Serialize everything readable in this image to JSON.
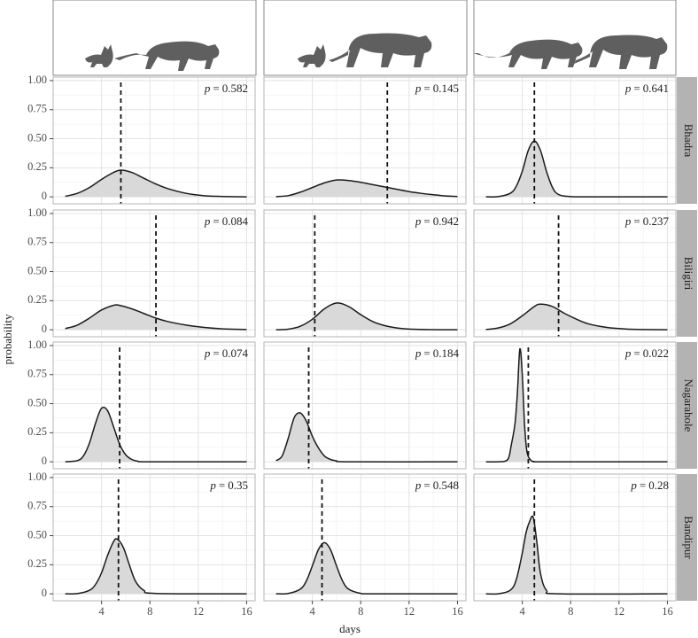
{
  "chart_data": {
    "type": "density-facets",
    "xlabel": "days",
    "ylabel": "probability",
    "xlim": [
      0,
      16.7
    ],
    "ylim": [
      -0.06,
      1.03
    ],
    "xticks": [
      4,
      8,
      12,
      16
    ],
    "yticks": [
      {
        "value": 0,
        "label": "0"
      },
      {
        "value": 0.25,
        "label": "0.25"
      },
      {
        "value": 0.5,
        "label": "0.50"
      },
      {
        "value": 0.75,
        "label": "0.75"
      },
      {
        "value": 1,
        "label": "1.00"
      }
    ],
    "grid": true,
    "fill": "#d9d9d9",
    "line_color": "#1a1a1a",
    "stat_symbol": "p",
    "stat_operator": "=",
    "rows": [
      "Bhadra",
      "Biligiri",
      "Nagarahole",
      "Bandipur"
    ],
    "panels": [
      [
        {
          "x": [
            1,
            2,
            3,
            4,
            5,
            5.6,
            6.5,
            7.5,
            8.5,
            9.5,
            11,
            12.5,
            14,
            16
          ],
          "values": [
            0.005,
            0.03,
            0.08,
            0.15,
            0.21,
            0.23,
            0.21,
            0.16,
            0.11,
            0.07,
            0.03,
            0.01,
            0.003,
            0
          ],
          "observed": 5.6,
          "p": 0.582
        },
        {
          "x": [
            1,
            2,
            3,
            4,
            5,
            6,
            7,
            8,
            9,
            10,
            11,
            12,
            13,
            14,
            15,
            16
          ],
          "values": [
            0.002,
            0.01,
            0.04,
            0.08,
            0.12,
            0.145,
            0.14,
            0.125,
            0.105,
            0.085,
            0.065,
            0.045,
            0.03,
            0.018,
            0.008,
            0.003
          ],
          "observed": 10.2,
          "p": 0.145
        },
        {
          "x": [
            1,
            2,
            3,
            3.5,
            4,
            4.5,
            5,
            5.5,
            6,
            6.5,
            7,
            8,
            10,
            16
          ],
          "values": [
            0,
            0.002,
            0.03,
            0.09,
            0.22,
            0.4,
            0.48,
            0.4,
            0.22,
            0.08,
            0.02,
            0.002,
            0,
            0
          ],
          "observed": 5.0,
          "p": 0.641
        }
      ],
      [
        {
          "x": [
            1,
            2,
            3,
            4,
            5,
            5.5,
            6.5,
            7.5,
            8.5,
            9.5,
            11,
            12.5,
            14,
            16
          ],
          "values": [
            0.01,
            0.04,
            0.1,
            0.17,
            0.21,
            0.21,
            0.18,
            0.14,
            0.1,
            0.07,
            0.04,
            0.02,
            0.008,
            0.002
          ],
          "observed": 8.5,
          "p": 0.084
        },
        {
          "x": [
            1,
            2,
            3,
            4,
            5,
            6,
            7,
            8,
            9,
            10,
            11,
            12,
            14,
            16
          ],
          "values": [
            0,
            0.005,
            0.03,
            0.09,
            0.18,
            0.23,
            0.2,
            0.13,
            0.07,
            0.035,
            0.015,
            0.006,
            0.001,
            0
          ],
          "observed": 4.2,
          "p": 0.942
        },
        {
          "x": [
            1,
            2,
            3,
            4,
            5,
            5.5,
            6.5,
            7.5,
            8.5,
            9.5,
            11,
            12.5,
            14,
            16
          ],
          "values": [
            0.002,
            0.015,
            0.05,
            0.12,
            0.2,
            0.22,
            0.2,
            0.14,
            0.09,
            0.05,
            0.02,
            0.007,
            0.002,
            0
          ],
          "observed": 7.0,
          "p": 0.237
        }
      ],
      [
        {
          "x": [
            1,
            2,
            2.5,
            3,
            3.5,
            4,
            4.5,
            5,
            5.5,
            6,
            6.5,
            7,
            8,
            16
          ],
          "values": [
            0,
            0.01,
            0.05,
            0.16,
            0.33,
            0.46,
            0.44,
            0.3,
            0.15,
            0.06,
            0.02,
            0.005,
            0,
            0
          ],
          "observed": 5.5,
          "p": 0.074
        },
        {
          "x": [
            1,
            1.5,
            2,
            2.5,
            3,
            3.5,
            4,
            4.5,
            5,
            5.5,
            6,
            7,
            16
          ],
          "values": [
            0.01,
            0.05,
            0.2,
            0.38,
            0.42,
            0.35,
            0.22,
            0.12,
            0.05,
            0.02,
            0.008,
            0,
            0
          ],
          "observed": 3.7,
          "p": 0.184
        },
        {
          "x": [
            1,
            2,
            2.8,
            3.1,
            3.4,
            3.6,
            3.8,
            4.0,
            4.2,
            4.4,
            4.7,
            5,
            6,
            16
          ],
          "values": [
            0,
            0,
            0.02,
            0.15,
            0.33,
            0.6,
            0.97,
            0.75,
            0.3,
            0.08,
            0.015,
            0.002,
            0,
            0
          ],
          "observed": 4.5,
          "p": 0.022
        }
      ],
      [
        {
          "x": [
            1,
            2,
            3,
            3.5,
            4,
            4.5,
            5,
            5.3,
            5.8,
            6.3,
            6.8,
            7.5,
            8.5,
            16
          ],
          "values": [
            0,
            0.002,
            0.03,
            0.08,
            0.18,
            0.33,
            0.45,
            0.47,
            0.4,
            0.25,
            0.11,
            0.03,
            0.003,
            0
          ],
          "observed": 5.4,
          "p": 0.35
        },
        {
          "x": [
            1,
            2,
            3,
            3.5,
            4,
            4.5,
            5,
            5.5,
            6,
            6.5,
            7,
            8,
            9,
            16
          ],
          "values": [
            0,
            0.003,
            0.04,
            0.11,
            0.24,
            0.38,
            0.44,
            0.38,
            0.24,
            0.11,
            0.04,
            0.004,
            0,
            0
          ],
          "observed": 4.8,
          "p": 0.548
        },
        {
          "x": [
            1,
            2,
            3,
            3.5,
            4,
            4.3,
            4.6,
            4.9,
            5.2,
            5.5,
            6,
            7,
            16
          ],
          "values": [
            0,
            0,
            0.03,
            0.12,
            0.35,
            0.52,
            0.62,
            0.66,
            0.45,
            0.18,
            0.03,
            0,
            0
          ],
          "observed": 5.0,
          "p": 0.28
        }
      ]
    ]
  }
}
